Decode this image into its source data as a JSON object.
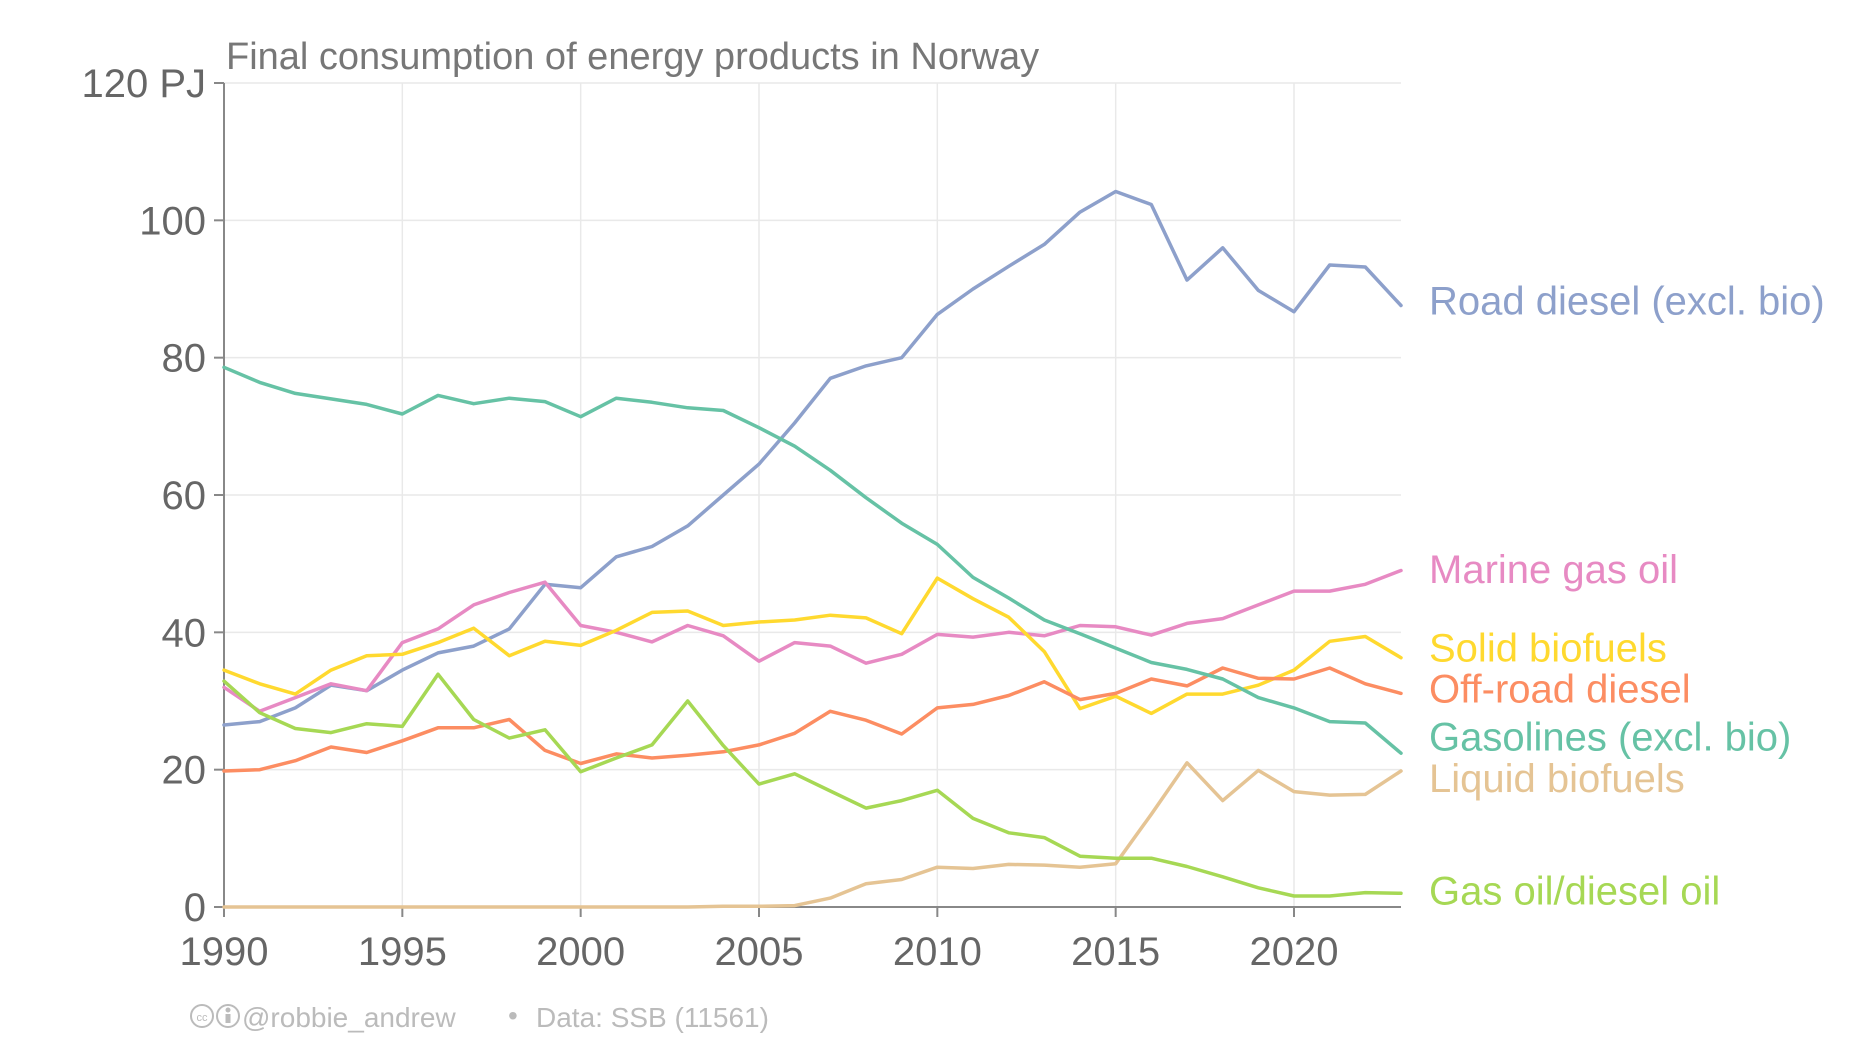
{
  "chart_data": {
    "type": "line",
    "title": "Final consumption of energy products in Norway",
    "ylabel": "",
    "xlabel": "",
    "y_unit": "PJ",
    "xlim": [
      1990,
      2023
    ],
    "ylim": [
      0,
      120
    ],
    "y_ticks": [
      0,
      20,
      40,
      60,
      80,
      100,
      120
    ],
    "y_tick_labels": [
      "0",
      "20",
      "40",
      "60",
      "80",
      "100",
      "120 PJ"
    ],
    "x_ticks": [
      1990,
      1995,
      2000,
      2005,
      2010,
      2015,
      2020
    ],
    "x_tick_labels": [
      "1990",
      "1995",
      "2000",
      "2005",
      "2010",
      "2015",
      "2020"
    ],
    "grid": true,
    "legend": "direct labels at right end of lines",
    "x": [
      1990,
      1991,
      1992,
      1993,
      1994,
      1995,
      1996,
      1997,
      1998,
      1999,
      2000,
      2001,
      2002,
      2003,
      2004,
      2005,
      2006,
      2007,
      2008,
      2009,
      2010,
      2011,
      2012,
      2013,
      2014,
      2015,
      2016,
      2017,
      2018,
      2019,
      2020,
      2021,
      2022,
      2023
    ],
    "series": [
      {
        "name": "Road diesel  (excl. bio)",
        "color": "#8da0cb",
        "label_y": 88.3,
        "values": [
          26.5,
          27,
          29,
          32.3,
          31.5,
          34.5,
          37,
          38,
          40.5,
          47,
          46.5,
          51,
          52.5,
          55.5,
          60,
          64.5,
          70.5,
          77,
          78.8,
          80,
          86.3,
          90,
          93.3,
          96.5,
          101.2,
          104.2,
          102.3,
          91.3,
          96,
          89.8,
          86.7,
          93.5,
          93.2,
          87.6
        ]
      },
      {
        "name": "Marine gas oil",
        "color": "#e78ac3",
        "label_y": 49.2,
        "values": [
          32,
          28.5,
          30.5,
          32.5,
          31.5,
          38.5,
          40.5,
          44,
          45.8,
          47.3,
          41,
          40,
          38.6,
          41,
          39.5,
          35.8,
          38.5,
          38,
          35.5,
          36.8,
          39.7,
          39.3,
          40,
          39.5,
          41,
          40.8,
          39.6,
          41.3,
          42,
          44,
          46,
          46,
          47,
          49
        ]
      },
      {
        "name": "Solid biofuels",
        "color": "#ffd92f",
        "label_y": 37.8,
        "values": [
          34.5,
          32.5,
          31,
          34.5,
          36.6,
          36.8,
          38.5,
          40.6,
          36.6,
          38.7,
          38.1,
          40.3,
          42.9,
          43.1,
          41,
          41.5,
          41.8,
          42.5,
          42.1,
          39.8,
          47.9,
          44.9,
          42.2,
          37.2,
          28.9,
          30.7,
          28.2,
          31,
          31,
          32.3,
          34.5,
          38.7,
          39.4,
          36.3
        ]
      },
      {
        "name": "Off-road diesel",
        "color": "#fc8d62",
        "label_y": 31.8,
        "values": [
          19.8,
          20,
          21.3,
          23.3,
          22.5,
          24.2,
          26.1,
          26.1,
          27.3,
          22.8,
          20.9,
          22.3,
          21.7,
          22.1,
          22.6,
          23.6,
          25.3,
          28.5,
          27.2,
          25.2,
          29,
          29.5,
          30.8,
          32.8,
          30.2,
          31.1,
          33.2,
          32.2,
          34.8,
          33.3,
          33.2,
          34.8,
          32.5,
          31.1
        ]
      },
      {
        "name": "Gasolines (excl. bio)",
        "color": "#66c2a5",
        "label_y": 24.8,
        "values": [
          78.6,
          76.4,
          74.8,
          74,
          73.2,
          71.8,
          74.5,
          73.3,
          74.1,
          73.6,
          71.4,
          74.1,
          73.5,
          72.7,
          72.3,
          69.8,
          67.1,
          63.6,
          59.6,
          55.9,
          52.8,
          48,
          45,
          41.8,
          39.8,
          37.7,
          35.6,
          34.6,
          33.2,
          30.5,
          29,
          27,
          26.8,
          22.4
        ]
      },
      {
        "name": "Liquid biofuels",
        "color": "#e5c494",
        "label_y": 18.8,
        "values": [
          0,
          0,
          0,
          0,
          0,
          0,
          0,
          0,
          0,
          0,
          0,
          0,
          0,
          0,
          0.1,
          0.1,
          0.2,
          1.3,
          3.4,
          4,
          5.8,
          5.6,
          6.2,
          6.1,
          5.8,
          6.3,
          13.5,
          21,
          15.5,
          19.9,
          16.8,
          16.3,
          16.4,
          19.8
        ]
      },
      {
        "name": "Gas oil/diesel oil",
        "color": "#a6d854",
        "label_y": 2.4,
        "values": [
          32.9,
          28.3,
          26,
          25.4,
          26.7,
          26.3,
          33.9,
          27.3,
          24.6,
          25.8,
          19.7,
          21.7,
          23.6,
          30,
          23.5,
          17.9,
          19.4,
          16.9,
          14.4,
          15.5,
          17,
          12.9,
          10.8,
          10.1,
          7.4,
          7.1,
          7.1,
          5.9,
          4.4,
          2.8,
          1.6,
          1.6,
          2.1,
          2
        ]
      }
    ]
  },
  "footer": {
    "license_icons": "creative-commons-by-icons",
    "author": "@robbie_andrew",
    "separator": "•",
    "source": "Data: SSB (11561)"
  }
}
